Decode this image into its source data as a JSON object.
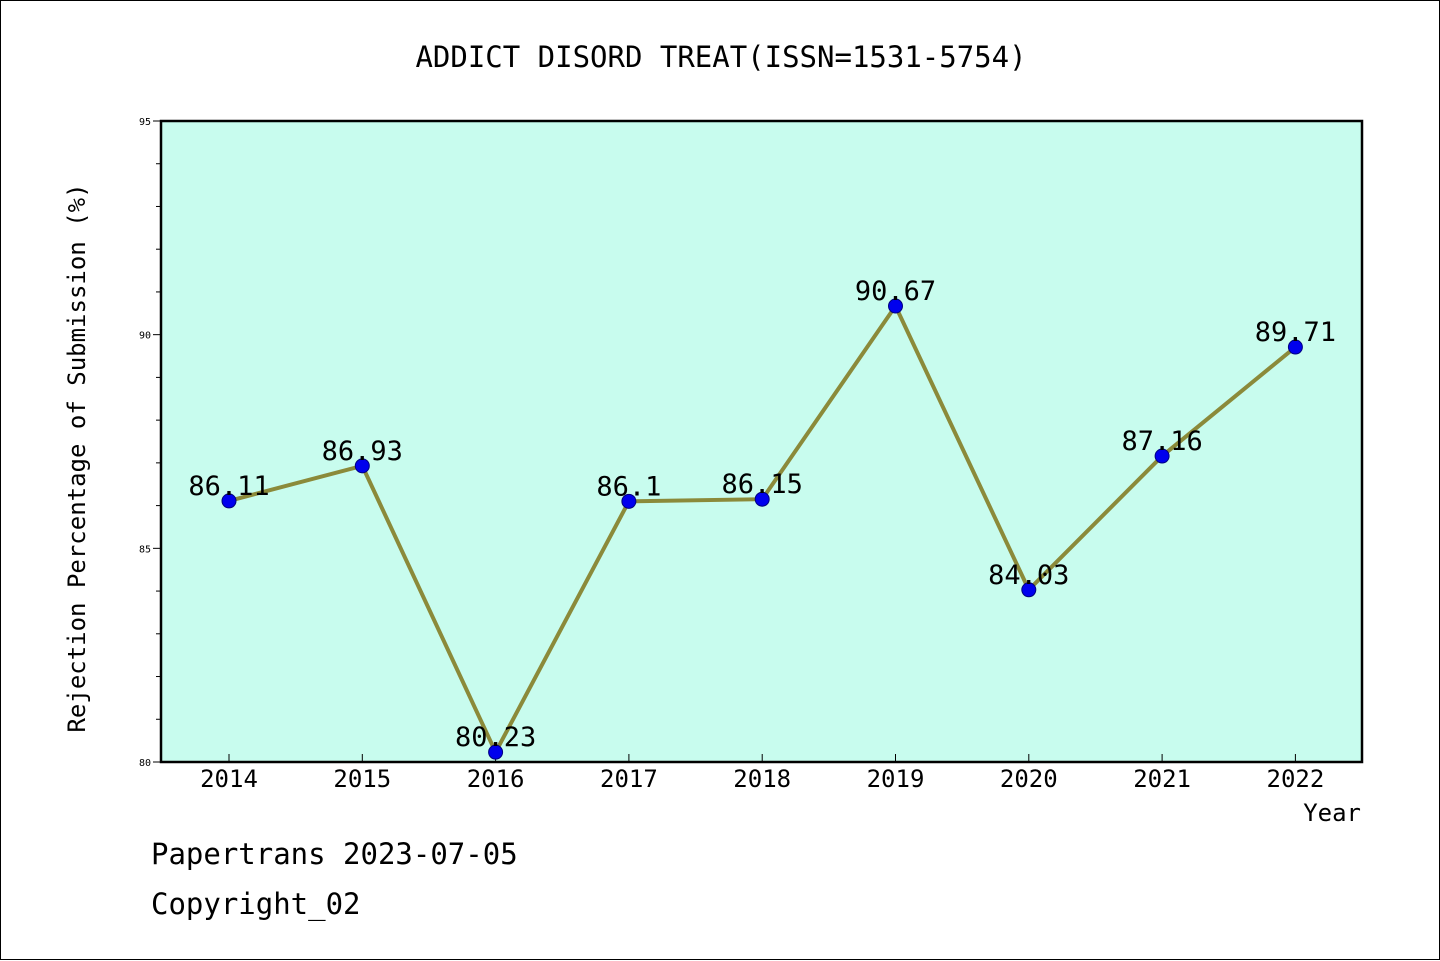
{
  "chart_data": {
    "type": "line",
    "title": "ADDICT DISORD TREAT(ISSN=1531-5754)",
    "xlabel": "Year",
    "ylabel": "Rejection Percentage of Submission (%)",
    "x": [
      "2014",
      "2015",
      "2016",
      "2017",
      "2018",
      "2019",
      "2020",
      "2021",
      "2022"
    ],
    "series": [
      {
        "values": [
          86.11,
          86.93,
          80.23,
          86.1,
          86.15,
          90.67,
          84.03,
          87.16,
          89.71
        ],
        "labels": [
          "86.11",
          "86.93",
          "80.23",
          "86.1",
          "86.15",
          "90.67",
          "84.03",
          "87.16",
          "89.71"
        ]
      }
    ],
    "ylim": [
      80,
      95
    ],
    "yticks": [
      "80",
      "85",
      "90",
      "95"
    ],
    "grid": false,
    "legend": "none",
    "colors": {
      "plot_background": "#c8fcee",
      "line": "#8b8a3a",
      "marker": "#0000ee"
    }
  },
  "footer": {
    "line1": "Papertrans 2023-07-05",
    "line2": "Copyright_02"
  }
}
